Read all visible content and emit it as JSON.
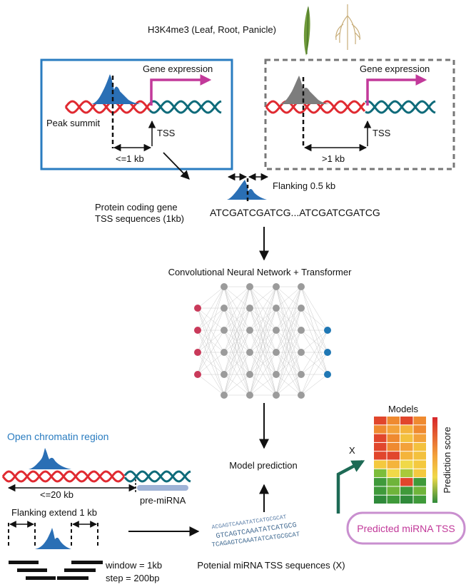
{
  "top_label": "H3K4me3 (Leaf, Root, Panicle)",
  "left_box": {
    "gene_expression": "Gene expression",
    "peak_summit": "Peak summit",
    "tss": "TSS",
    "distance": "<=1 kb"
  },
  "right_box": {
    "gene_expression": "Gene expression",
    "tss": "TSS",
    "distance": ">1 kb"
  },
  "flanking": "Flanking 0.5 kb",
  "tss_seq_label_line1": "Protein coding gene",
  "tss_seq_label_line2": "TSS sequences (1kb)",
  "sequence": "ATCGATCGATCG...ATCGATCGATCG",
  "network_title": "Convolutional Neural Network + Transformer",
  "open_chromatin": "Open chromatin region",
  "distance_20kb": "<=20 kb",
  "pre_mirna": "pre-miRNA",
  "flanking_extend": "Flanking extend 1 kb",
  "window": "window = 1kb",
  "step": "step = 200bp",
  "model_prediction": "Model prediction",
  "potential_seqs": "Potenial miRNA TSS sequences (X)",
  "models_label": "Models",
  "x_label": "X",
  "prediction_score": "Prediction score",
  "predicted_tss": "Predicted miRNA TSS",
  "seq_fragments": [
    "ACGAGTCAAATATCATGCGCAT",
    "GTCAGTCAAATATCATGCG",
    "TCAGAGTCAAATATCATGCGCAT"
  ],
  "heatmap": {
    "rows": 10,
    "cols": 4,
    "colors": [
      [
        "#e1462c",
        "#ef8a30",
        "#e1462c",
        "#ef8a30"
      ],
      [
        "#ef8a30",
        "#f3a23a",
        "#f4b43c",
        "#ef8a30"
      ],
      [
        "#e1462c",
        "#ef8a30",
        "#f3c13e",
        "#f3a23a"
      ],
      [
        "#e1462c",
        "#ef8a30",
        "#f3a23a",
        "#f3c13e"
      ],
      [
        "#e1462c",
        "#e1462c",
        "#f4b43c",
        "#f3c13e"
      ],
      [
        "#f4c93f",
        "#f4b43c",
        "#f0d948",
        "#f4c93f"
      ],
      [
        "#7cbd3a",
        "#f0d948",
        "#a9c93a",
        "#f4c93f"
      ],
      [
        "#3f9a3a",
        "#6fb43a",
        "#e1462c",
        "#3f9a3a"
      ],
      [
        "#3f9a3a",
        "#6fb43a",
        "#3f9a3a",
        "#6fb43a"
      ],
      [
        "#2f8a3a",
        "#3f9a3a",
        "#2f8a3a",
        "#3f9a3a"
      ]
    ]
  },
  "colors": {
    "dna_red": "#e02a31",
    "dna_teal": "#0f6b7a",
    "peak_blue": "#2a6fb5",
    "peak_grey": "#7d7d7d",
    "arrow_magenta": "#c2399a",
    "left_box_border": "#2a7cc0",
    "right_box_border": "#777777",
    "node_grey": "#9b9b9b",
    "node_red": "#c93a5a",
    "node_blue": "#1f77b4",
    "green_arrow": "#1d6a55"
  }
}
